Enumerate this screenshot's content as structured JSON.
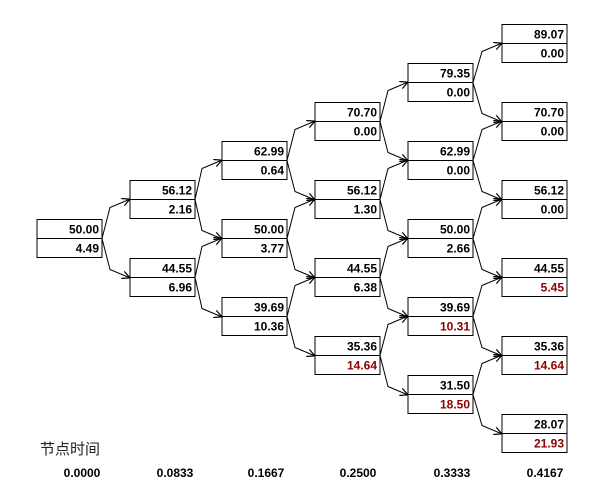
{
  "axis_title": "节点时间",
  "highlight_color": "#8b0000",
  "text_color": "#000000",
  "times": [
    "0.0000",
    "0.0833",
    "0.1667",
    "0.2500",
    "0.3333",
    "0.4167"
  ],
  "levels": [
    [
      {
        "price": "50.00",
        "value": "4.49",
        "exercised": false
      }
    ],
    [
      {
        "price": "56.12",
        "value": "2.16",
        "exercised": false
      },
      {
        "price": "44.55",
        "value": "6.96",
        "exercised": false
      }
    ],
    [
      {
        "price": "62.99",
        "value": "0.64",
        "exercised": false
      },
      {
        "price": "50.00",
        "value": "3.77",
        "exercised": false
      },
      {
        "price": "39.69",
        "value": "10.36",
        "exercised": false
      }
    ],
    [
      {
        "price": "70.70",
        "value": "0.00",
        "exercised": false
      },
      {
        "price": "56.12",
        "value": "1.30",
        "exercised": false
      },
      {
        "price": "44.55",
        "value": "6.38",
        "exercised": false
      },
      {
        "price": "35.36",
        "value": "14.64",
        "exercised": true
      }
    ],
    [
      {
        "price": "79.35",
        "value": "0.00",
        "exercised": false
      },
      {
        "price": "62.99",
        "value": "0.00",
        "exercised": false
      },
      {
        "price": "50.00",
        "value": "2.66",
        "exercised": false
      },
      {
        "price": "39.69",
        "value": "10.31",
        "exercised": true
      },
      {
        "price": "31.50",
        "value": "18.50",
        "exercised": true
      }
    ],
    [
      {
        "price": "89.07",
        "value": "0.00",
        "exercised": false
      },
      {
        "price": "70.70",
        "value": "0.00",
        "exercised": false
      },
      {
        "price": "56.12",
        "value": "0.00",
        "exercised": false
      },
      {
        "price": "44.55",
        "value": "5.45",
        "exercised": true
      },
      {
        "price": "35.36",
        "value": "14.64",
        "exercised": true
      },
      {
        "price": "28.07",
        "value": "21.93",
        "exercised": true
      }
    ]
  ]
}
